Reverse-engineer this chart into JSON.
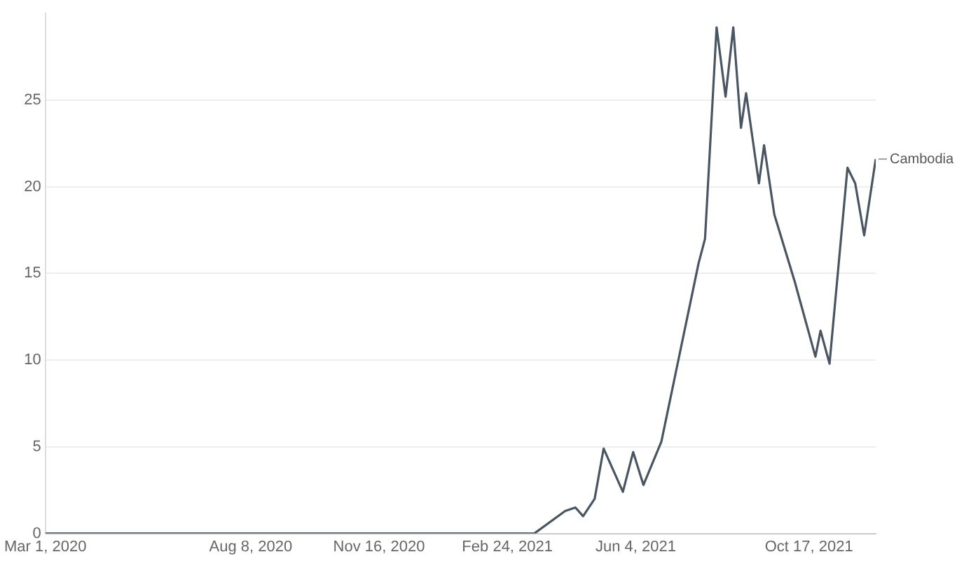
{
  "chart_data": {
    "type": "line",
    "x": [
      "2020-03-01",
      "2021-03-17",
      "2021-04-10",
      "2021-04-18",
      "2021-04-24",
      "2021-05-03",
      "2021-05-10",
      "2021-05-25",
      "2021-06-02",
      "2021-06-10",
      "2021-06-24",
      "2021-07-12",
      "2021-07-23",
      "2021-07-28",
      "2021-08-06",
      "2021-08-13",
      "2021-08-19",
      "2021-08-25",
      "2021-08-29",
      "2021-09-08",
      "2021-09-12",
      "2021-09-20",
      "2021-10-06",
      "2021-10-22",
      "2021-10-26",
      "2021-11-02",
      "2021-11-16",
      "2021-11-22",
      "2021-11-29",
      "2021-12-08"
    ],
    "series": [
      {
        "name": "Cambodia",
        "color": "#4a5563",
        "values": [
          0,
          0,
          1.3,
          1.5,
          1.0,
          2.0,
          4.9,
          2.4,
          4.7,
          2.8,
          5.3,
          11.7,
          15.6,
          17.0,
          29.2,
          25.2,
          29.2,
          23.4,
          25.4,
          20.2,
          22.4,
          18.4,
          14.5,
          10.2,
          11.7,
          9.8,
          21.1,
          20.2,
          17.2,
          21.6
        ]
      }
    ],
    "xlim": [
      "2020-03-01",
      "2021-12-08"
    ],
    "xticks": [
      {
        "value": "2020-03-01",
        "label": "Mar 1, 2020"
      },
      {
        "value": "2020-08-08",
        "label": "Aug 8, 2020"
      },
      {
        "value": "2020-11-16",
        "label": "Nov 16, 2020"
      },
      {
        "value": "2021-02-24",
        "label": "Feb 24, 2021"
      },
      {
        "value": "2021-06-04",
        "label": "Jun 4, 2021"
      },
      {
        "value": "2021-10-17",
        "label": "Oct 17, 2021"
      }
    ],
    "ylim": [
      0,
      30
    ],
    "yticks": [
      0,
      5,
      10,
      15,
      20,
      25
    ],
    "grid": "y",
    "legend": false,
    "marker": "none",
    "line_style": "solid"
  }
}
